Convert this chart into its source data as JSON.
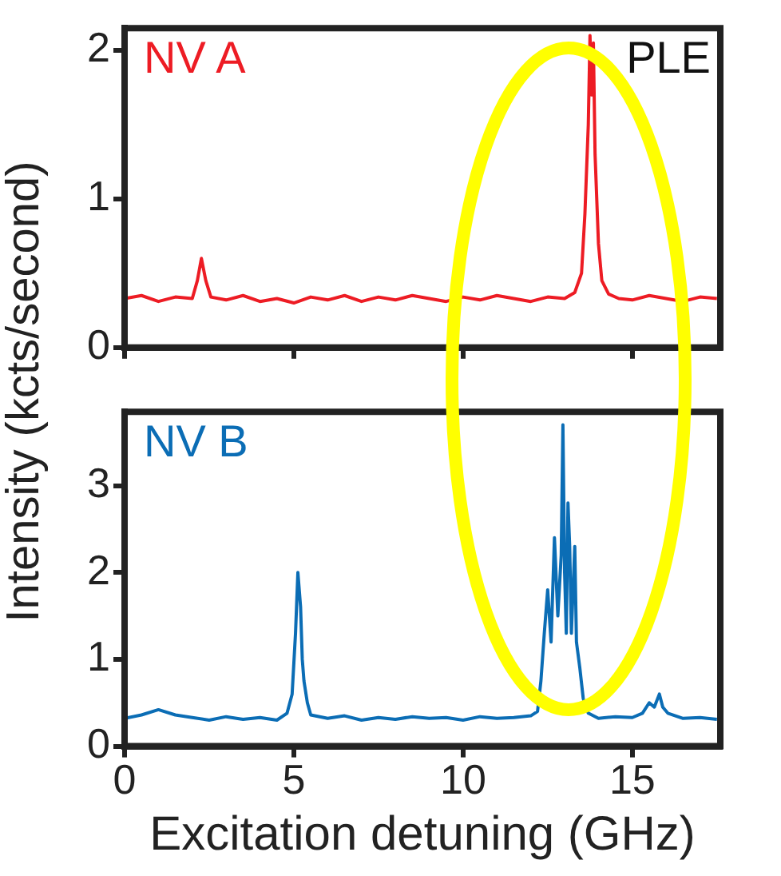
{
  "chart_data": [
    {
      "type": "line",
      "ylabel": "Intensity (kcts/second)",
      "annotations": [
        "PLE"
      ],
      "xlim": [
        0,
        17.6
      ],
      "xticks": [
        0,
        5,
        10,
        15
      ],
      "ylim": [
        0,
        2.15
      ],
      "yticks": [
        0,
        1,
        2
      ],
      "tick_labels": "y",
      "marker": "none",
      "line_style": "solid",
      "series": [
        {
          "name": "NV A",
          "color": "#ed1c24",
          "x": [
            0,
            0.5,
            1,
            1.5,
            2,
            2.15,
            2.27,
            2.4,
            2.55,
            3,
            3.5,
            4,
            4.5,
            5,
            5.5,
            6,
            6.5,
            7,
            7.5,
            8,
            8.5,
            9,
            9.5,
            10,
            10.5,
            11,
            11.5,
            12,
            12.5,
            13,
            13.3,
            13.5,
            13.6,
            13.7,
            13.75,
            13.8,
            13.85,
            13.9,
            14,
            14.1,
            14.3,
            14.6,
            15,
            15.5,
            16,
            16.5,
            17,
            17.5
          ],
          "values": [
            0.33,
            0.35,
            0.31,
            0.34,
            0.33,
            0.45,
            0.6,
            0.45,
            0.34,
            0.32,
            0.35,
            0.31,
            0.33,
            0.3,
            0.34,
            0.32,
            0.35,
            0.31,
            0.34,
            0.32,
            0.35,
            0.33,
            0.31,
            0.34,
            0.32,
            0.35,
            0.33,
            0.31,
            0.34,
            0.33,
            0.37,
            0.5,
            0.9,
            1.5,
            2.1,
            1.7,
            2.05,
            1.3,
            0.7,
            0.45,
            0.36,
            0.33,
            0.32,
            0.35,
            0.33,
            0.31,
            0.34,
            0.33
          ]
        }
      ]
    },
    {
      "type": "line",
      "xlabel": "Excitation detuning (GHz)",
      "xlim": [
        0,
        17.6
      ],
      "xticks": [
        0,
        5,
        10,
        15
      ],
      "ylim": [
        0,
        3.85
      ],
      "yticks": [
        0,
        1,
        2,
        3
      ],
      "marker": "none",
      "line_style": "solid",
      "series": [
        {
          "name": "NV B",
          "color": "#0b6db5",
          "x": [
            0,
            0.5,
            1,
            1.5,
            2,
            2.5,
            3,
            3.5,
            4,
            4.5,
            4.8,
            4.95,
            5.05,
            5.12,
            5.2,
            5.25,
            5.3,
            5.4,
            5.5,
            6,
            6.5,
            7,
            7.5,
            8,
            8.5,
            9,
            9.5,
            10,
            10.5,
            11,
            11.5,
            12,
            12.2,
            12.3,
            12.4,
            12.5,
            12.6,
            12.7,
            12.8,
            12.9,
            12.95,
            13,
            13.05,
            13.1,
            13.15,
            13.2,
            13.3,
            13.35,
            13.45,
            13.55,
            13.7,
            14,
            14.5,
            15,
            15.3,
            15.5,
            15.65,
            15.8,
            15.9,
            16.05,
            16.5,
            17,
            17.5
          ],
          "values": [
            0.32,
            0.36,
            0.42,
            0.36,
            0.33,
            0.3,
            0.34,
            0.31,
            0.33,
            0.3,
            0.38,
            0.6,
            1.3,
            2,
            1.6,
            1,
            0.75,
            0.5,
            0.36,
            0.32,
            0.35,
            0.3,
            0.33,
            0.31,
            0.34,
            0.32,
            0.33,
            0.3,
            0.34,
            0.32,
            0.33,
            0.35,
            0.4,
            0.75,
            1.3,
            1.8,
            1.2,
            2.4,
            1.5,
            2.2,
            3.7,
            2,
            1.3,
            2.8,
            2.3,
            1.3,
            2.3,
            1.2,
            0.9,
            0.55,
            0.38,
            0.32,
            0.34,
            0.33,
            0.38,
            0.5,
            0.45,
            0.6,
            0.45,
            0.38,
            0.32,
            0.33,
            0.31
          ]
        }
      ]
    }
  ]
}
